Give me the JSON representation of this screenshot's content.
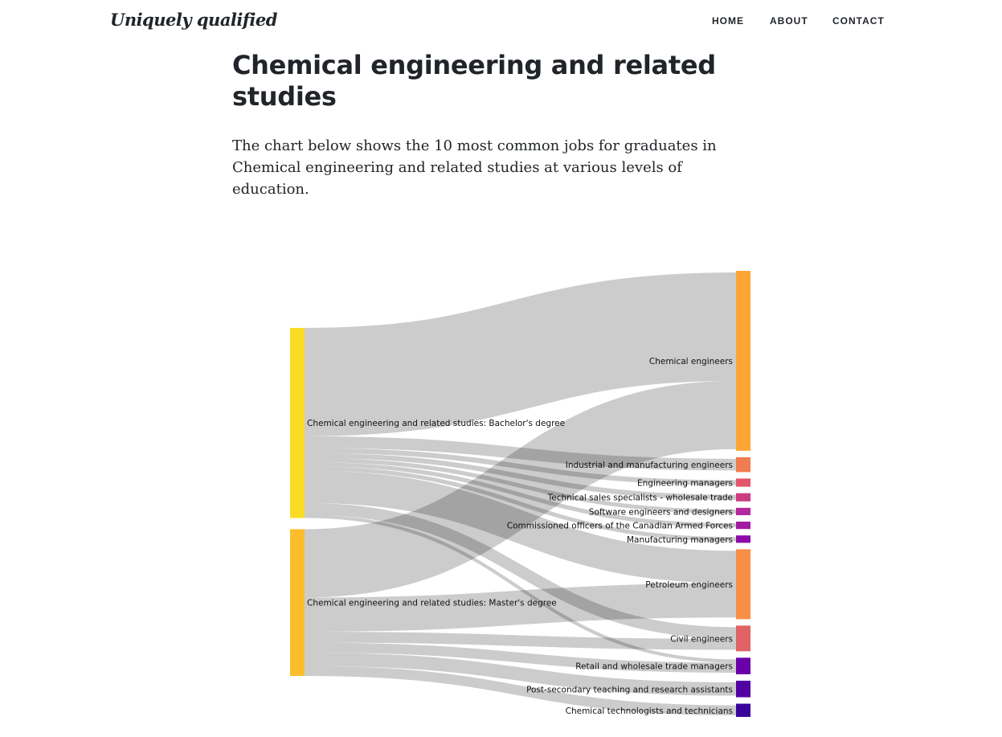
{
  "header": {
    "brand": "Uniquely qualified",
    "nav": [
      "HOME",
      "ABOUT",
      "CONTACT"
    ]
  },
  "page": {
    "title": "Chemical engineering and related studies",
    "intro": "The chart below shows the 10 most common jobs for graduates in Chemical engineering and related studies at various levels of education."
  },
  "chart_data": {
    "type": "sankey",
    "sources": [
      {
        "name": "Chemical engineering and related studies: Bachelor's degree",
        "color": "#f9dd24"
      },
      {
        "name": "Chemical engineering and related studies: Master's degree",
        "color": "#fbbd2c"
      }
    ],
    "targets": [
      {
        "name": "Chemical engineers",
        "color": "#fda535"
      },
      {
        "name": "Industrial and manufacturing engineers",
        "color": "#f17c50"
      },
      {
        "name": "Engineering managers",
        "color": "#e2566d"
      },
      {
        "name": "Technical sales specialists - wholesale trade",
        "color": "#cc3c80"
      },
      {
        "name": "Software engineers and designers",
        "color": "#b3289a"
      },
      {
        "name": "Commissioned officers of the Canadian Armed Forces",
        "color": "#a01ba0"
      },
      {
        "name": "Manufacturing managers",
        "color": "#8c0aa8"
      },
      {
        "name": "Petroleum engineers",
        "color": "#f98e48"
      },
      {
        "name": "Civil engineers",
        "color": "#e06265"
      },
      {
        "name": "Retail and wholesale trade managers",
        "color": "#6a00a8"
      },
      {
        "name": "Post-secondary teaching and research assistants",
        "color": "#5202a2"
      },
      {
        "name": "Chemical technologists and technicians",
        "color": "#3a049a"
      }
    ],
    "link_color": "#cccccc",
    "links": [
      {
        "source": 0,
        "target": 0,
        "value": 130
      },
      {
        "source": 1,
        "target": 0,
        "value": 82
      },
      {
        "source": 0,
        "target": 1,
        "value": 14
      },
      {
        "source": 0,
        "target": 2,
        "value": 6
      },
      {
        "source": 0,
        "target": 3,
        "value": 6
      },
      {
        "source": 0,
        "target": 4,
        "value": 5
      },
      {
        "source": 0,
        "target": 5,
        "value": 5
      },
      {
        "source": 0,
        "target": 6,
        "value": 5
      },
      {
        "source": 0,
        "target": 7,
        "value": 39
      },
      {
        "source": 1,
        "target": 7,
        "value": 41
      },
      {
        "source": 0,
        "target": 8,
        "value": 14
      },
      {
        "source": 1,
        "target": 8,
        "value": 13
      },
      {
        "source": 0,
        "target": 9,
        "value": 4
      },
      {
        "source": 1,
        "target": 9,
        "value": 12
      },
      {
        "source": 1,
        "target": 10,
        "value": 16
      },
      {
        "source": 1,
        "target": 10.5,
        "value": 0
      },
      {
        "source": 1,
        "target": 11,
        "value": 12
      }
    ]
  }
}
